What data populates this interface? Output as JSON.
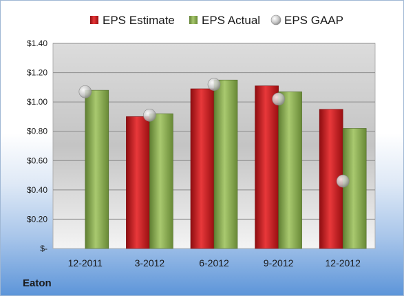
{
  "company": "Eaton",
  "chart_data": {
    "type": "bar",
    "categories": [
      "12-2011",
      "3-2012",
      "6-2012",
      "9-2012",
      "12-2012"
    ],
    "series": [
      {
        "name": "EPS Estimate",
        "kind": "bar",
        "color": "#c0141a",
        "values": [
          null,
          0.9,
          1.09,
          1.11,
          0.95
        ]
      },
      {
        "name": "EPS Actual",
        "kind": "bar",
        "color": "#7fa24a",
        "values": [
          1.08,
          0.92,
          1.15,
          1.07,
          0.82
        ]
      },
      {
        "name": "EPS GAAP",
        "kind": "marker",
        "color": "#b5b5b5",
        "values": [
          1.07,
          0.91,
          1.12,
          1.02,
          0.46
        ]
      }
    ],
    "ylim": [
      0,
      1.4
    ],
    "yticks": [
      0,
      0.2,
      0.4,
      0.6,
      0.8,
      1.0,
      1.2,
      1.4
    ],
    "ytick_labels": [
      "$-",
      "$0.20",
      "$0.40",
      "$0.60",
      "$0.80",
      "$1.00",
      "$1.20",
      "$1.40"
    ],
    "grid": true,
    "legend_position": "top"
  }
}
